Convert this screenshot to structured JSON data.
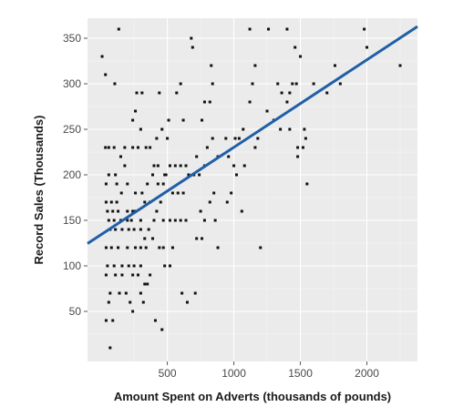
{
  "chart_data": {
    "type": "scatter",
    "title": "",
    "xlabel": "Amount Spent on Adverts (thousands of pounds)",
    "ylabel": "Record Sales (Thousands)",
    "xlim": [
      -100,
      2380
    ],
    "ylim": [
      -5,
      372
    ],
    "x_ticks": [
      500,
      1000,
      1500,
      2000
    ],
    "y_ticks": [
      50,
      100,
      150,
      200,
      250,
      300,
      350
    ],
    "grid": true,
    "legend": "none",
    "colors": {
      "panel": "#ebebeb",
      "grid_major": "#ffffff",
      "grid_minor": "#f5f5f5",
      "points": "#111111",
      "fit_line": "#1f5fa8"
    },
    "regression": {
      "intercept": 134.1,
      "slope": 0.0961
    },
    "series": [
      {
        "points": [
          [
            10,
            330
          ],
          [
            35,
            310
          ],
          [
            135,
            360
          ],
          [
            105,
            300
          ],
          [
            35,
            230
          ],
          [
            60,
            230
          ],
          [
            100,
            230
          ],
          [
            180,
            230
          ],
          [
            240,
            230
          ],
          [
            280,
            230
          ],
          [
            40,
            190
          ],
          [
            60,
            200
          ],
          [
            110,
            200
          ],
          [
            150,
            220
          ],
          [
            180,
            210
          ],
          [
            200,
            190
          ],
          [
            120,
            190
          ],
          [
            40,
            170
          ],
          [
            80,
            170
          ],
          [
            120,
            170
          ],
          [
            155,
            180
          ],
          [
            50,
            160
          ],
          [
            90,
            160
          ],
          [
            130,
            160
          ],
          [
            200,
            160
          ],
          [
            240,
            160
          ],
          [
            260,
            160
          ],
          [
            60,
            150
          ],
          [
            100,
            150
          ],
          [
            150,
            150
          ],
          [
            200,
            150
          ],
          [
            230,
            150
          ],
          [
            70,
            140
          ],
          [
            110,
            140
          ],
          [
            160,
            140
          ],
          [
            210,
            140
          ],
          [
            250,
            140
          ],
          [
            40,
            120
          ],
          [
            80,
            120
          ],
          [
            130,
            120
          ],
          [
            200,
            120
          ],
          [
            260,
            120
          ],
          [
            300,
            120
          ],
          [
            50,
            100
          ],
          [
            100,
            100
          ],
          [
            160,
            100
          ],
          [
            210,
            100
          ],
          [
            250,
            100
          ],
          [
            300,
            100
          ],
          [
            40,
            90
          ],
          [
            110,
            90
          ],
          [
            160,
            90
          ],
          [
            240,
            90
          ],
          [
            280,
            90
          ],
          [
            70,
            70
          ],
          [
            140,
            70
          ],
          [
            190,
            70
          ],
          [
            300,
            70
          ],
          [
            320,
            60
          ],
          [
            220,
            60
          ],
          [
            60,
            60
          ],
          [
            240,
            50
          ],
          [
            40,
            40
          ],
          [
            90,
            40
          ],
          [
            70,
            10
          ],
          [
            270,
            290
          ],
          [
            310,
            290
          ],
          [
            440,
            290
          ],
          [
            260,
            270
          ],
          [
            300,
            250
          ],
          [
            240,
            260
          ],
          [
            420,
            240
          ],
          [
            340,
            230
          ],
          [
            370,
            230
          ],
          [
            400,
            210
          ],
          [
            430,
            210
          ],
          [
            260,
            180
          ],
          [
            310,
            180
          ],
          [
            350,
            190
          ],
          [
            390,
            200
          ],
          [
            430,
            190
          ],
          [
            470,
            190
          ],
          [
            330,
            170
          ],
          [
            370,
            170
          ],
          [
            420,
            160
          ],
          [
            300,
            150
          ],
          [
            360,
            140
          ],
          [
            400,
            150
          ],
          [
            470,
            150
          ],
          [
            330,
            130
          ],
          [
            390,
            130
          ],
          [
            340,
            120
          ],
          [
            440,
            120
          ],
          [
            470,
            120
          ],
          [
            480,
            100
          ],
          [
            350,
            80
          ],
          [
            330,
            80
          ],
          [
            410,
            40
          ],
          [
            460,
            30
          ],
          [
            370,
            90
          ],
          [
            300,
            140
          ],
          [
            450,
            170
          ],
          [
            480,
            200
          ],
          [
            490,
            200
          ],
          [
            460,
            250
          ],
          [
            500,
            240
          ],
          [
            510,
            260
          ],
          [
            600,
            300
          ],
          [
            570,
            290
          ],
          [
            620,
            260
          ],
          [
            520,
            210
          ],
          [
            560,
            210
          ],
          [
            600,
            210
          ],
          [
            640,
            210
          ],
          [
            540,
            180
          ],
          [
            580,
            180
          ],
          [
            620,
            180
          ],
          [
            660,
            200
          ],
          [
            700,
            200
          ],
          [
            520,
            150
          ],
          [
            560,
            150
          ],
          [
            600,
            150
          ],
          [
            640,
            150
          ],
          [
            540,
            120
          ],
          [
            520,
            100
          ],
          [
            610,
            70
          ],
          [
            650,
            60
          ],
          [
            710,
            70
          ],
          [
            680,
            350
          ],
          [
            690,
            340
          ],
          [
            760,
            260
          ],
          [
            780,
            280
          ],
          [
            820,
            280
          ],
          [
            840,
            300
          ],
          [
            830,
            320
          ],
          [
            780,
            210
          ],
          [
            740,
            200
          ],
          [
            720,
            220
          ],
          [
            800,
            230
          ],
          [
            840,
            240
          ],
          [
            880,
            220
          ],
          [
            750,
            160
          ],
          [
            780,
            150
          ],
          [
            820,
            170
          ],
          [
            850,
            180
          ],
          [
            860,
            150
          ],
          [
            880,
            120
          ],
          [
            760,
            130
          ],
          [
            720,
            130
          ],
          [
            1000,
            210
          ],
          [
            960,
            220
          ],
          [
            940,
            240
          ],
          [
            1010,
            240
          ],
          [
            1040,
            240
          ],
          [
            1070,
            250
          ],
          [
            1120,
            280
          ],
          [
            1140,
            300
          ],
          [
            1160,
            320
          ],
          [
            1120,
            360
          ],
          [
            1180,
            240
          ],
          [
            1160,
            230
          ],
          [
            1060,
            160
          ],
          [
            980,
            180
          ],
          [
            950,
            170
          ],
          [
            1020,
            200
          ],
          [
            1080,
            210
          ],
          [
            1200,
            120
          ],
          [
            1260,
            360
          ],
          [
            1300,
            260
          ],
          [
            1330,
            300
          ],
          [
            1360,
            290
          ],
          [
            1400,
            280
          ],
          [
            1420,
            290
          ],
          [
            1440,
            300
          ],
          [
            1460,
            340
          ],
          [
            1470,
            300
          ],
          [
            1500,
            330
          ],
          [
            1520,
            230
          ],
          [
            1530,
            250
          ],
          [
            1540,
            240
          ],
          [
            1550,
            190
          ],
          [
            1480,
            220
          ],
          [
            1400,
            360
          ],
          [
            1600,
            300
          ],
          [
            1700,
            290
          ],
          [
            1760,
            320
          ],
          [
            1800,
            300
          ],
          [
            1980,
            360
          ],
          [
            2000,
            340
          ],
          [
            2250,
            320
          ],
          [
            1420,
            250
          ],
          [
            1480,
            230
          ],
          [
            1350,
            250
          ],
          [
            1250,
            270
          ]
        ]
      }
    ]
  }
}
